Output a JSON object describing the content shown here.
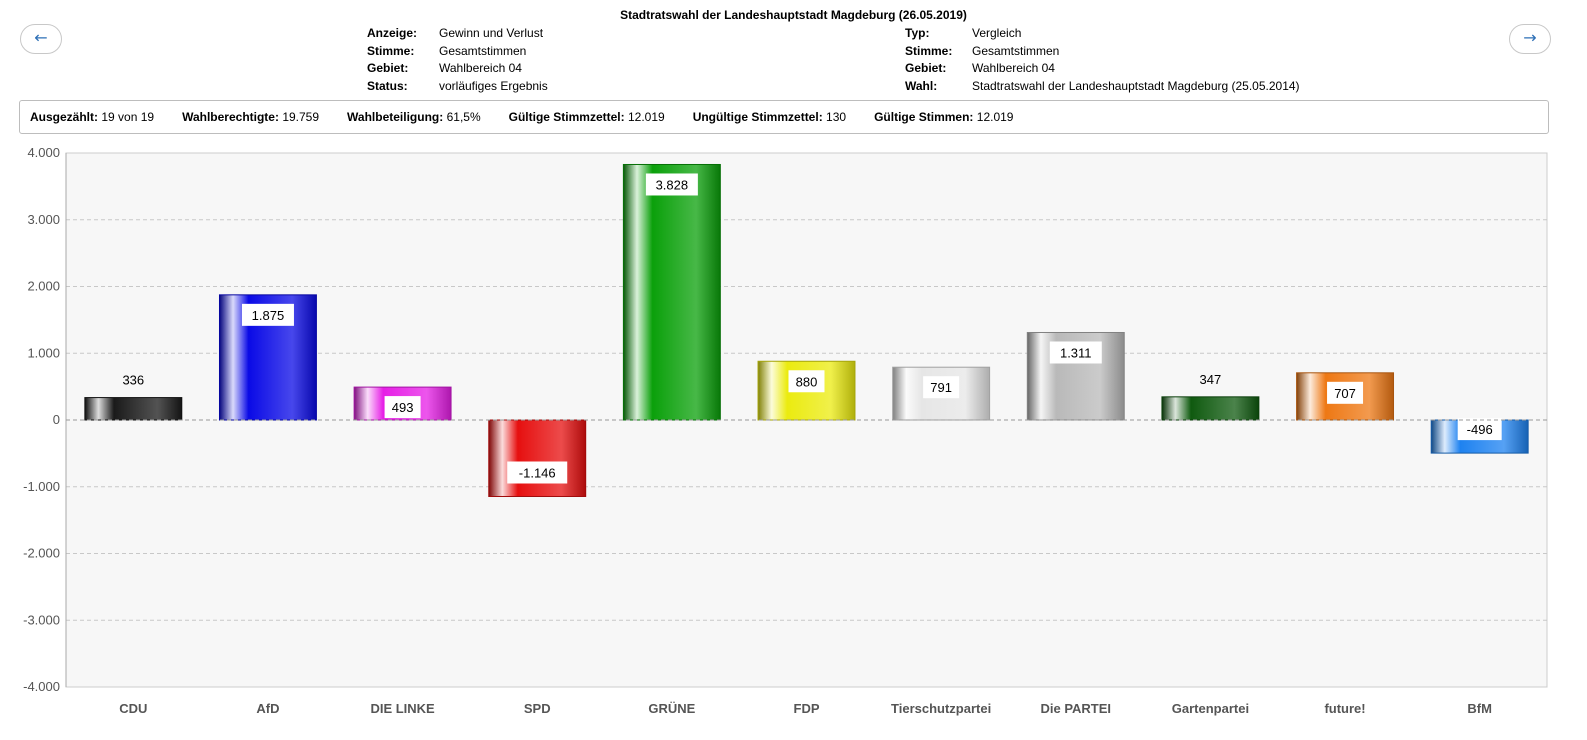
{
  "nav": {
    "prev_label": "←",
    "next_label": "→"
  },
  "header": {
    "title": "Stadtratswahl der Landeshauptstadt Magdeburg (26.05.2019)",
    "left": [
      {
        "key": "Anzeige:",
        "value": "Gewinn und Verlust"
      },
      {
        "key": "Stimme:",
        "value": "Gesamtstimmen"
      },
      {
        "key": "Gebiet:",
        "value": "Wahlbereich 04"
      },
      {
        "key": "Status:",
        "value": "vorläufiges Ergebnis"
      }
    ],
    "right": [
      {
        "key": "Typ:",
        "value": "Vergleich"
      },
      {
        "key": "Stimme:",
        "value": "Gesamtstimmen"
      },
      {
        "key": "Gebiet:",
        "value": "Wahlbereich 04"
      },
      {
        "key": "Wahl:",
        "value": "Stadtratswahl der Landeshauptstadt Magdeburg (25.05.2014)"
      }
    ]
  },
  "stats": [
    {
      "key": "Ausgezählt:",
      "value": "19 von 19"
    },
    {
      "key": "Wahlberechtigte:",
      "value": "19.759"
    },
    {
      "key": "Wahlbeteiligung:",
      "value": "61,5%"
    },
    {
      "key": "Gültige Stimmzettel:",
      "value": "12.019"
    },
    {
      "key": "Ungültige Stimmzettel:",
      "value": "130"
    },
    {
      "key": "Gültige Stimmen:",
      "value": "12.019"
    }
  ],
  "chart_data": {
    "type": "bar",
    "categories": [
      "CDU",
      "AfD",
      "DIE LINKE",
      "SPD",
      "GRÜNE",
      "FDP",
      "Tierschutzpartei",
      "Die PARTEI",
      "Gartenpartei",
      "future!",
      "BfM"
    ],
    "values": [
      336,
      1875,
      493,
      -1146,
      3828,
      880,
      791,
      1311,
      347,
      707,
      -496
    ],
    "value_labels": [
      "336",
      "1.875",
      "493",
      "-1.146",
      "3.828",
      "880",
      "791",
      "1.311",
      "347",
      "707",
      "-496"
    ],
    "colors": [
      "#1a1a1a",
      "#0a0ae6",
      "#e61ee6",
      "#e60f0f",
      "#0aa00a",
      "#ebeb0f",
      "#e6e6e6",
      "#b9b9b9",
      "#0f5a0f",
      "#ee7814",
      "#1e82f0"
    ],
    "yticks": [
      4000,
      3000,
      2000,
      1000,
      0,
      -1000,
      -2000,
      -3000,
      -4000
    ],
    "ytick_labels": [
      "4.000",
      "3.000",
      "2.000",
      "1.000",
      "0",
      "-1.000",
      "-2.000",
      "-3.000",
      "-4.000"
    ],
    "ylim": [
      -4000,
      4000
    ],
    "grid": true,
    "legend": "none"
  }
}
